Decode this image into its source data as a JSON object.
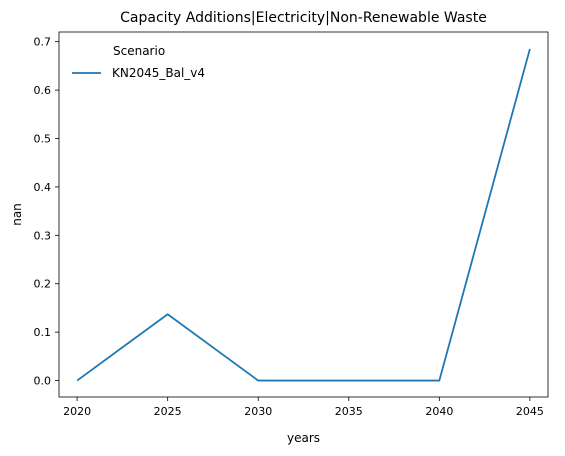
{
  "chart_data": {
    "type": "line",
    "title": "Capacity Additions|Electricity|Non-Renewable Waste",
    "xlabel": "years",
    "ylabel": "nan",
    "x": [
      2020,
      2025,
      2030,
      2035,
      2040,
      2045
    ],
    "xlim": [
      2019,
      2046
    ],
    "ylim": [
      -0.034,
      0.72
    ],
    "xticks": [
      2020,
      2025,
      2030,
      2035,
      2040,
      2045
    ],
    "yticks": [
      0.0,
      0.1,
      0.2,
      0.3,
      0.4,
      0.5,
      0.6,
      0.7
    ],
    "ytick_labels": [
      "0.0",
      "0.1",
      "0.2",
      "0.3",
      "0.4",
      "0.5",
      "0.6",
      "0.7"
    ],
    "grid": false,
    "legend": {
      "title": "Scenario",
      "placement": "top-left"
    },
    "series": [
      {
        "name": "KN2045_Bal_v4",
        "color": "#1f77b4",
        "values": [
          0.0,
          0.137,
          0.0,
          0.0,
          0.0,
          0.685
        ]
      }
    ]
  }
}
